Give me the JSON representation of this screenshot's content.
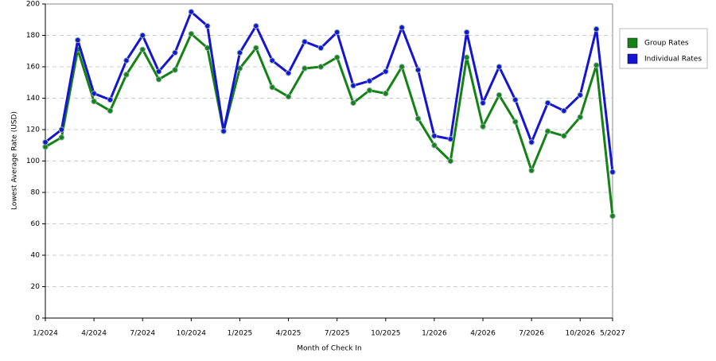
{
  "chart_data": {
    "type": "line",
    "xlabel": "Month of Check In",
    "ylabel": "Lowest Average Rate (USD)",
    "categories": [
      "1/2024",
      null,
      null,
      "4/2024",
      null,
      null,
      "7/2024",
      null,
      null,
      "10/2024",
      null,
      null,
      "1/2025",
      null,
      null,
      "4/2025",
      null,
      null,
      "7/2025",
      null,
      null,
      "10/2025",
      null,
      null,
      "1/2026",
      null,
      null,
      "4/2026",
      null,
      null,
      "7/2026",
      null,
      null,
      "10/2026",
      null,
      "5/2027"
    ],
    "series": [
      {
        "name": "Group Rates",
        "color": "#148214",
        "values": [
          109,
          115,
          171,
          138,
          132,
          155,
          171,
          152,
          158,
          181,
          172,
          119,
          159,
          172,
          147,
          141,
          159,
          160,
          166,
          137,
          145,
          143,
          160,
          127,
          110,
          100,
          166,
          122,
          142,
          125,
          94,
          119,
          116,
          128,
          161,
          65
        ]
      },
      {
        "name": "Individual Rates",
        "color": "#1414d2",
        "values": [
          112,
          120,
          177,
          143,
          139,
          164,
          180,
          157,
          169,
          195,
          186,
          119,
          169,
          186,
          164,
          156,
          176,
          172,
          182,
          148,
          151,
          157,
          185,
          158,
          116,
          114,
          182,
          137,
          160,
          139,
          112,
          137,
          132,
          142,
          184,
          93
        ]
      }
    ],
    "ylim": [
      0,
      200
    ],
    "yticks": [
      0,
      20,
      40,
      60,
      80,
      100,
      120,
      140,
      160,
      180,
      200
    ],
    "grid": true,
    "legend": "right"
  }
}
